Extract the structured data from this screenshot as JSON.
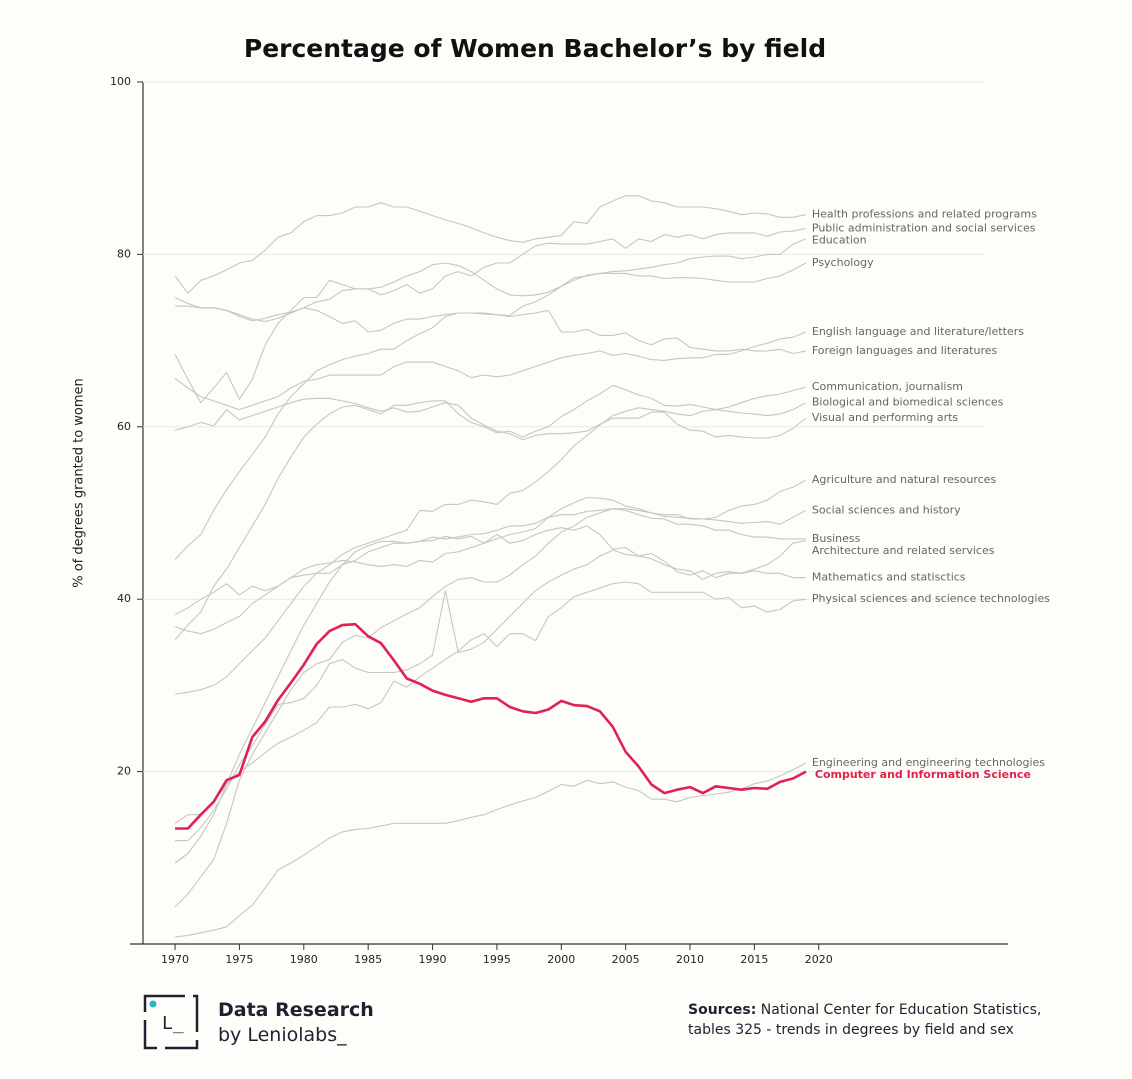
{
  "chart_data": {
    "type": "line",
    "title": "Percentage of Women Bachelor’s by field",
    "y_label": "% of degrees granted to women",
    "x": [
      1970,
      1971,
      1972,
      1973,
      1974,
      1975,
      1976,
      1977,
      1978,
      1979,
      1980,
      1981,
      1982,
      1983,
      1984,
      1985,
      1986,
      1987,
      1988,
      1989,
      1990,
      1991,
      1992,
      1993,
      1994,
      1995,
      1996,
      1997,
      1998,
      1999,
      2000,
      2001,
      2002,
      2003,
      2004,
      2005,
      2006,
      2007,
      2008,
      2009,
      2010,
      2011,
      2012,
      2013,
      2014,
      2015,
      2016,
      2017,
      2018,
      2019
    ],
    "xlim": [
      1966.5,
      2034.7
    ],
    "xticks": [
      1970,
      1975,
      1980,
      1985,
      1990,
      1995,
      2000,
      2005,
      2010,
      2015,
      2020
    ],
    "ylim": [
      0,
      100
    ],
    "yticks": [
      20,
      40,
      60,
      80,
      100
    ],
    "grid": true,
    "series": [
      {
        "name": "Health professions and related programs",
        "color": "#c6c6c4",
        "values": [
          77.5,
          75.5,
          77,
          77.5,
          78.2,
          79,
          79.3,
          80.5,
          82,
          82.5,
          83.8,
          84.5,
          84.5,
          84.8,
          85.5,
          85.5,
          86,
          85.5,
          85.5,
          85,
          84.5,
          84,
          83.6,
          83.1,
          82.5,
          82,
          81.6,
          81.4,
          81.8,
          82,
          82.2,
          83.8,
          83.6,
          85.5,
          86.2,
          86.8,
          86.8,
          86.2,
          86,
          85.5,
          85.5,
          85.5,
          85.3,
          85,
          84.6,
          84.8,
          84.7,
          84.3,
          84.3,
          84.6
        ]
      },
      {
        "name": "Public administration and social services",
        "color": "#c6c6c4",
        "values": [
          68.4,
          65.5,
          62.8,
          64.5,
          66.3,
          63.2,
          65.5,
          69.5,
          72,
          73.5,
          75,
          75,
          77,
          76.5,
          76,
          76,
          75.3,
          75.8,
          76.5,
          75.5,
          76,
          77.5,
          78,
          77.5,
          78.5,
          79,
          79,
          80,
          81,
          81.3,
          81.2,
          81.2,
          81.2,
          81.5,
          81.8,
          80.7,
          81.8,
          81.5,
          82.3,
          82,
          82.3,
          81.8,
          82.3,
          82.5,
          82.5,
          82.5,
          82.1,
          82.6,
          82.7,
          83
        ]
      },
      {
        "name": "Education",
        "color": "#c6c6c4",
        "values": [
          75,
          74.3,
          73.8,
          73.8,
          73.5,
          73,
          72.5,
          72.2,
          72.6,
          73.2,
          73.8,
          74.5,
          74.8,
          75.8,
          76,
          76,
          76.2,
          76.8,
          77.5,
          78,
          78.8,
          79,
          78.7,
          78,
          77,
          76,
          75.3,
          75.2,
          75.3,
          75.6,
          76.3,
          77,
          77.6,
          77.8,
          78,
          78.1,
          78.3,
          78.5,
          78.8,
          79,
          79.5,
          79.7,
          79.8,
          79.8,
          79.5,
          79.7,
          80,
          80,
          81.2,
          81.8
        ]
      },
      {
        "name": "Psychology",
        "color": "#c6c6c4",
        "values": [
          44.6,
          46.2,
          47.5,
          50.3,
          52.7,
          54.8,
          56.8,
          58.8,
          61.5,
          63.5,
          65,
          66.5,
          67.2,
          67.8,
          68.2,
          68.5,
          69,
          69,
          70,
          70.8,
          71.5,
          72.8,
          73.2,
          73.2,
          73.2,
          73,
          72.9,
          74,
          74.5,
          75.3,
          76.3,
          77.3,
          77.5,
          77.8,
          77.8,
          77.8,
          77.5,
          77.5,
          77.2,
          77.3,
          77.3,
          77.2,
          77,
          76.8,
          76.8,
          76.8,
          77.2,
          77.5,
          78.2,
          79
        ]
      },
      {
        "name": "English language and literature/letters",
        "color": "#c6c6c4",
        "values": [
          65.6,
          64.5,
          63.5,
          63,
          62.5,
          62,
          62.5,
          63,
          63.5,
          64.5,
          65.3,
          65.5,
          66,
          66,
          66,
          66,
          66,
          67,
          67.5,
          67.5,
          67.5,
          67,
          66.5,
          65.7,
          66,
          65.8,
          66,
          66.5,
          67,
          67.5,
          68,
          68.3,
          68.5,
          68.8,
          68.3,
          68.5,
          68.2,
          67.8,
          67.7,
          67.9,
          68,
          68,
          68.4,
          68.4,
          68.8,
          69.3,
          69.7,
          70.2,
          70.4,
          71
        ]
      },
      {
        "name": "Foreign languages and literatures",
        "color": "#c6c6c4",
        "values": [
          74,
          74,
          73.8,
          73.8,
          73.5,
          72.8,
          72.3,
          72.6,
          73,
          73.3,
          73.8,
          73.5,
          72.8,
          72,
          72.3,
          71,
          71.2,
          72,
          72.5,
          72.5,
          72.8,
          73,
          73.2,
          73.2,
          73.1,
          73,
          72.8,
          73,
          73.2,
          73.5,
          71,
          71,
          71.3,
          70.6,
          70.6,
          70.9,
          70,
          69.5,
          70.2,
          70.3,
          69.2,
          69,
          68.8,
          68.8,
          69,
          68.8,
          68.8,
          69,
          68.5,
          68.8
        ]
      },
      {
        "name": "Communication, journalism",
        "color": "#c6c6c4",
        "values": [
          35.3,
          37,
          38.5,
          41.5,
          43.5,
          46,
          48.5,
          51,
          54,
          56.5,
          58.8,
          60.3,
          61.5,
          62.3,
          62.5,
          62,
          61.5,
          62.5,
          62.5,
          62.8,
          63,
          63,
          61.5,
          60.5,
          60,
          59.3,
          59.5,
          58.8,
          59.5,
          60,
          61.2,
          62,
          63,
          63.8,
          64.8,
          64.3,
          63.7,
          63.3,
          62.5,
          62.4,
          62.6,
          62.3,
          62,
          62.3,
          62.8,
          63.3,
          63.6,
          63.8,
          64.2,
          64.6
        ]
      },
      {
        "name": "Biological and biomedical sciences",
        "color": "#c6c6c4",
        "values": [
          29,
          29.2,
          29.5,
          30,
          31,
          32.5,
          34,
          35.5,
          37.5,
          39.5,
          41.5,
          43,
          44,
          45.2,
          46,
          46.5,
          47,
          47.5,
          48,
          50.3,
          50.2,
          51,
          51,
          51.5,
          51.3,
          51,
          52.3,
          52.6,
          53.6,
          54.8,
          56.2,
          57.8,
          59,
          60.2,
          61.3,
          61.8,
          62.2,
          62,
          61.8,
          61.5,
          61.3,
          61.8,
          62,
          61.8,
          61.6,
          61.5,
          61.3,
          61.5,
          62,
          62.8
        ]
      },
      {
        "name": "Visual and performing arts",
        "color": "#c6c6c4",
        "values": [
          59.6,
          60,
          60.5,
          60.1,
          62,
          60.8,
          61.3,
          61.8,
          62.3,
          62.8,
          63.2,
          63.3,
          63.3,
          63,
          62.7,
          62.2,
          61.8,
          62.2,
          61.7,
          61.8,
          62.3,
          62.8,
          62.5,
          61,
          60.2,
          59.5,
          59.2,
          58.5,
          59,
          59.2,
          59.2,
          59.3,
          59.5,
          60.3,
          61,
          61,
          61,
          61.7,
          61.7,
          60.3,
          59.6,
          59.5,
          58.8,
          59,
          58.8,
          58.7,
          58.7,
          59,
          59.8,
          61
        ]
      },
      {
        "name": "Agriculture and natural resources",
        "color": "#c6c6c4",
        "values": [
          4.3,
          5.8,
          7.8,
          9.8,
          14,
          19,
          22,
          24.5,
          27,
          29.5,
          31.5,
          32.5,
          33,
          35,
          35.8,
          35.5,
          36.7,
          37.5,
          38.3,
          39,
          40.3,
          41.5,
          42.3,
          42.5,
          42,
          42,
          42.8,
          44,
          45,
          46.5,
          47.8,
          48.5,
          49.5,
          50,
          50.5,
          50.5,
          50.3,
          50,
          49.8,
          49.8,
          49.3,
          49.3,
          49.5,
          50.3,
          50.8,
          51,
          51.5,
          52.5,
          53,
          53.8
        ]
      },
      {
        "name": "Social sciences and history",
        "color": "#c6c6c4",
        "values": [
          36.8,
          36.3,
          36,
          36.5,
          37.3,
          38,
          39.5,
          40.5,
          41.5,
          42.5,
          43.5,
          44,
          44.2,
          44.5,
          44.3,
          44,
          43.8,
          44,
          43.8,
          44.5,
          44.3,
          45.3,
          45.5,
          46,
          46.5,
          47,
          47.5,
          47.8,
          48.2,
          49.5,
          50.5,
          51.2,
          51.8,
          51.7,
          51.5,
          50.8,
          50.5,
          50,
          49.6,
          49.5,
          49.4,
          49.3,
          49.2,
          49,
          48.8,
          48.9,
          49,
          48.7,
          49.5,
          50.3
        ]
      },
      {
        "name": "Business",
        "color": "#c6c6c4",
        "values": [
          9.4,
          10.5,
          12.5,
          15,
          18.5,
          22,
          25,
          28,
          31,
          34,
          37,
          39.5,
          42,
          44,
          45.5,
          46.2,
          46.7,
          46.7,
          46.5,
          46.7,
          47.2,
          47,
          47.2,
          47.5,
          47.6,
          48,
          48.5,
          48.5,
          48.8,
          49.5,
          49.8,
          49.8,
          50.2,
          50.3,
          50.5,
          50.3,
          49.8,
          49.4,
          49.3,
          48.7,
          48.7,
          48.5,
          48,
          48,
          47.5,
          47.2,
          47.2,
          47,
          47,
          47
        ]
      },
      {
        "name": "Architecture and related services",
        "color": "#c6c6c4",
        "values": [
          12,
          12,
          13.5,
          15.5,
          18,
          20.8,
          23,
          25.5,
          27.8,
          28,
          28.5,
          30,
          32.5,
          33,
          32,
          31.5,
          31.5,
          31.5,
          31.8,
          32.5,
          33.5,
          41,
          33.8,
          34.2,
          35,
          36.5,
          38,
          39.5,
          41,
          42,
          42.8,
          43.5,
          44,
          45,
          45.7,
          45.2,
          45,
          44.7,
          44,
          43.5,
          43.3,
          42.3,
          43,
          43.2,
          43,
          43.5,
          44,
          45,
          46.5,
          46.8
        ]
      },
      {
        "name": "Mathematics and statisctics",
        "color": "#c6c6c4",
        "values": [
          38.2,
          39,
          40,
          40.8,
          41.8,
          40.5,
          41.5,
          41,
          41.5,
          42.5,
          42.8,
          43,
          43,
          44,
          44.5,
          45.5,
          46,
          46.5,
          46.5,
          46.7,
          46.8,
          47.3,
          47,
          47.3,
          46.5,
          47.5,
          46.5,
          46.8,
          47.5,
          48,
          48.3,
          48,
          48.5,
          47.5,
          45.8,
          46,
          45,
          45.3,
          44.4,
          43.2,
          42.8,
          43.3,
          42.5,
          43,
          43,
          43.3,
          43,
          43,
          42.5,
          42.5
        ]
      },
      {
        "name": "Physical sciences and science technologies",
        "color": "#c6c6c4",
        "values": [
          14,
          15,
          15,
          16.5,
          18.5,
          20,
          21,
          22.2,
          23.3,
          24,
          24.8,
          25.7,
          27.5,
          27.5,
          27.8,
          27.3,
          28,
          30.5,
          29.8,
          31,
          32,
          33,
          34,
          35.3,
          36,
          34.5,
          36,
          36,
          35.2,
          38,
          39,
          40.3,
          40.8,
          41.3,
          41.8,
          42,
          41.8,
          40.8,
          40.8,
          40.8,
          40.8,
          40.8,
          40,
          40.2,
          39,
          39.2,
          38.5,
          38.8,
          39.8,
          40
        ]
      },
      {
        "name": "Engineering and engineering technologies",
        "color": "#c6c6c4",
        "values": [
          0.8,
          1,
          1.3,
          1.6,
          2,
          3.3,
          4.5,
          6.5,
          8.6,
          9.4,
          10.3,
          11.3,
          12.3,
          13,
          13.3,
          13.4,
          13.7,
          14,
          14,
          14,
          14,
          14,
          14.3,
          14.7,
          15,
          15.6,
          16.1,
          16.6,
          17,
          17.7,
          18.5,
          18.3,
          19,
          18.6,
          18.8,
          18.2,
          17.8,
          16.8,
          16.8,
          16.5,
          17,
          17.2,
          17.4,
          17.6,
          18,
          18.6,
          18.9,
          19.5,
          20.2,
          21
        ]
      },
      {
        "name": "Computer and Information Science",
        "color": "#e0234e",
        "highlight": true,
        "values": [
          13.4,
          13.4,
          15,
          16.5,
          19,
          19.6,
          24,
          25.8,
          28.3,
          30.3,
          32.4,
          34.8,
          36.3,
          37,
          37.1,
          35.7,
          34.9,
          32.9,
          30.8,
          30.2,
          29.4,
          28.9,
          28.5,
          28.1,
          28.5,
          28.5,
          27.5,
          27,
          26.8,
          27.2,
          28.2,
          27.7,
          27.6,
          27,
          25.2,
          22.3,
          20.6,
          18.5,
          17.5,
          17.9,
          18.2,
          17.5,
          18.3,
          18.1,
          17.9,
          18.1,
          18,
          18.8,
          19.2,
          20
        ]
      }
    ]
  },
  "footer": {
    "brand_title": "Data Research",
    "brand_subtitle": "by Leniolabs_",
    "logo_mark": "L_",
    "sources_label": "Sources:",
    "sources_line1": "National Center for Education Statistics,",
    "sources_line2": "tables 325 - trends in degrees by field and sex"
  }
}
